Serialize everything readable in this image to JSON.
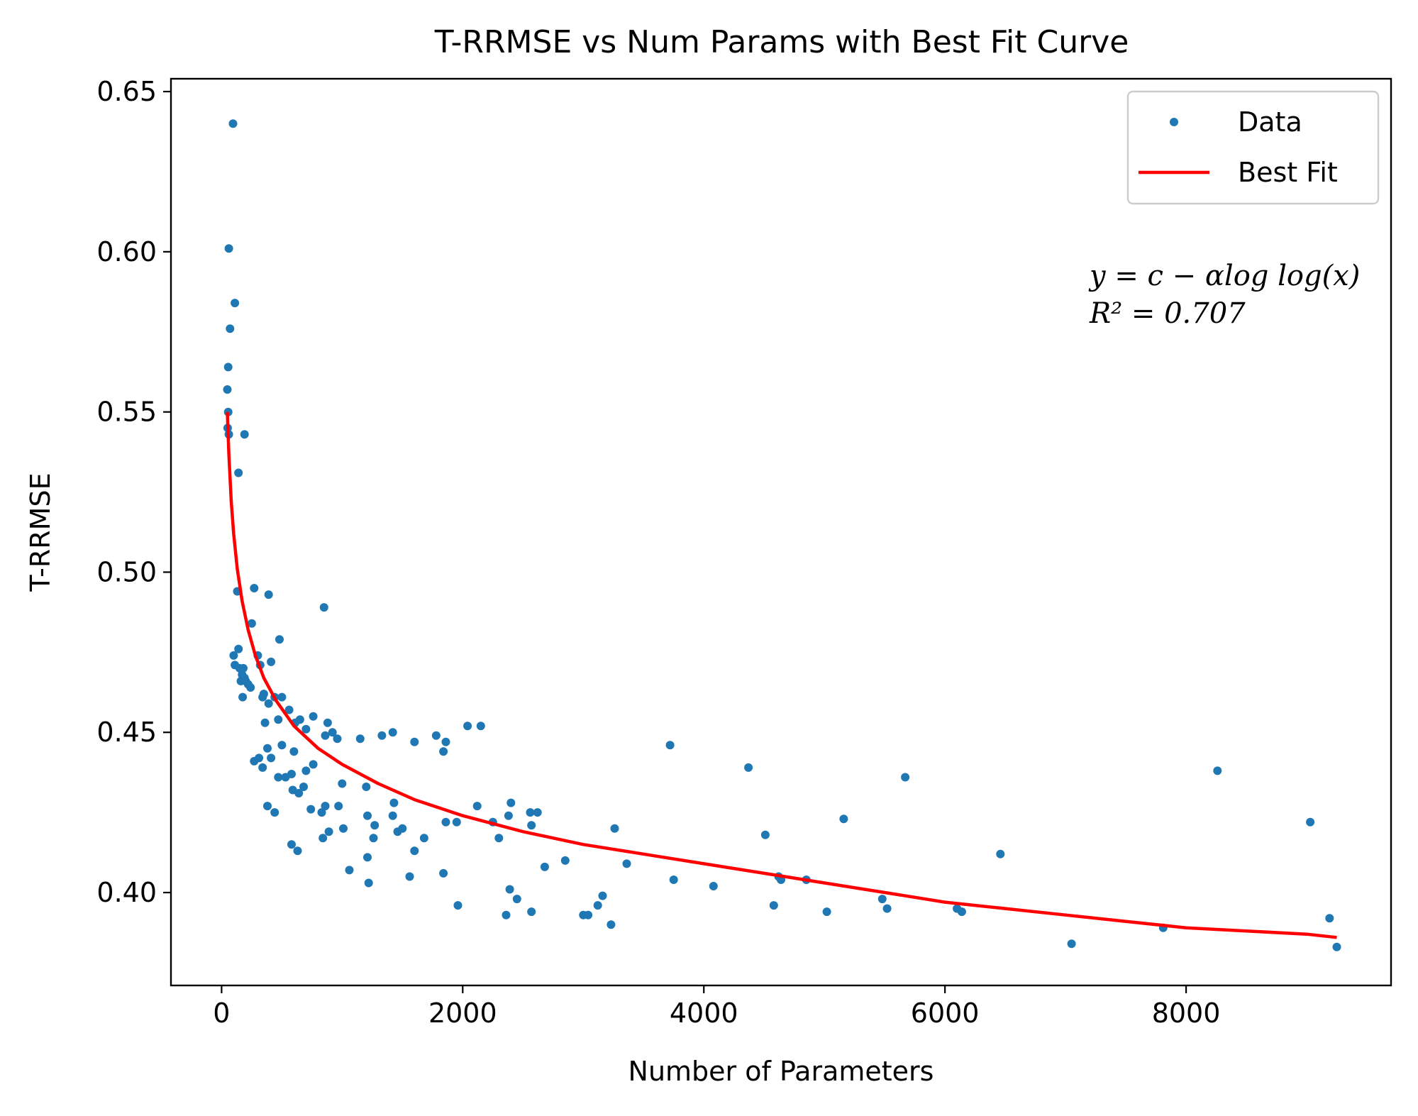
{
  "chart_data": {
    "type": "scatter",
    "title": "T-RRMSE vs Num Params with Best Fit Curve",
    "xlabel": "Number of Parameters",
    "ylabel": "T-RRMSE",
    "xlim": [
      -420,
      9700
    ],
    "ylim": [
      0.371,
      0.654
    ],
    "xticks": [
      0,
      2000,
      4000,
      6000,
      8000
    ],
    "xtick_labels": [
      "0",
      "2000",
      "4000",
      "6000",
      "8000"
    ],
    "yticks": [
      0.4,
      0.45,
      0.5,
      0.55,
      0.6,
      0.65
    ],
    "ytick_labels": [
      "0.40",
      "0.45",
      "0.50",
      "0.55",
      "0.60",
      "0.65"
    ],
    "grid": false,
    "legend": {
      "position": "top-right",
      "entries": [
        "Data",
        "Best Fit"
      ]
    },
    "annotation": {
      "line1": "y = c − αlog log(x)",
      "line2": "R² = 0.707"
    },
    "colors": {
      "data": "#1f77b4",
      "fit": "#ff0000",
      "axes": "#000000",
      "background": "#ffffff"
    },
    "series": [
      {
        "name": "Data",
        "kind": "scatter",
        "points": [
          [
            95,
            0.64
          ],
          [
            60,
            0.601
          ],
          [
            110,
            0.584
          ],
          [
            70,
            0.576
          ],
          [
            55,
            0.564
          ],
          [
            48,
            0.557
          ],
          [
            55,
            0.55
          ],
          [
            50,
            0.545
          ],
          [
            60,
            0.543
          ],
          [
            190,
            0.543
          ],
          [
            140,
            0.531
          ],
          [
            130,
            0.494
          ],
          [
            270,
            0.495
          ],
          [
            390,
            0.493
          ],
          [
            250,
            0.484
          ],
          [
            480,
            0.479
          ],
          [
            850,
            0.489
          ],
          [
            100,
            0.474
          ],
          [
            110,
            0.471
          ],
          [
            140,
            0.476
          ],
          [
            150,
            0.47
          ],
          [
            170,
            0.468
          ],
          [
            180,
            0.47
          ],
          [
            190,
            0.467
          ],
          [
            200,
            0.466
          ],
          [
            220,
            0.465
          ],
          [
            240,
            0.464
          ],
          [
            160,
            0.466
          ],
          [
            175,
            0.461
          ],
          [
            300,
            0.474
          ],
          [
            320,
            0.471
          ],
          [
            350,
            0.462
          ],
          [
            340,
            0.461
          ],
          [
            410,
            0.472
          ],
          [
            390,
            0.459
          ],
          [
            440,
            0.461
          ],
          [
            500,
            0.461
          ],
          [
            470,
            0.454
          ],
          [
            360,
            0.453
          ],
          [
            560,
            0.457
          ],
          [
            610,
            0.453
          ],
          [
            650,
            0.454
          ],
          [
            700,
            0.451
          ],
          [
            760,
            0.455
          ],
          [
            600,
            0.444
          ],
          [
            500,
            0.446
          ],
          [
            380,
            0.445
          ],
          [
            410,
            0.442
          ],
          [
            310,
            0.442
          ],
          [
            270,
            0.441
          ],
          [
            340,
            0.439
          ],
          [
            470,
            0.436
          ],
          [
            530,
            0.436
          ],
          [
            580,
            0.437
          ],
          [
            590,
            0.432
          ],
          [
            640,
            0.431
          ],
          [
            680,
            0.433
          ],
          [
            700,
            0.438
          ],
          [
            760,
            0.44
          ],
          [
            740,
            0.426
          ],
          [
            830,
            0.425
          ],
          [
            860,
            0.427
          ],
          [
            880,
            0.453
          ],
          [
            860,
            0.449
          ],
          [
            920,
            0.45
          ],
          [
            960,
            0.448
          ],
          [
            1000,
            0.434
          ],
          [
            970,
            0.427
          ],
          [
            380,
            0.427
          ],
          [
            440,
            0.425
          ],
          [
            580,
            0.415
          ],
          [
            630,
            0.413
          ],
          [
            840,
            0.417
          ],
          [
            890,
            0.419
          ],
          [
            1010,
            0.42
          ],
          [
            1060,
            0.407
          ],
          [
            1150,
            0.448
          ],
          [
            1200,
            0.433
          ],
          [
            1210,
            0.424
          ],
          [
            1270,
            0.421
          ],
          [
            1260,
            0.417
          ],
          [
            1210,
            0.411
          ],
          [
            1220,
            0.403
          ],
          [
            1330,
            0.449
          ],
          [
            1420,
            0.45
          ],
          [
            1430,
            0.428
          ],
          [
            1420,
            0.424
          ],
          [
            1460,
            0.419
          ],
          [
            1500,
            0.42
          ],
          [
            1600,
            0.447
          ],
          [
            1600,
            0.413
          ],
          [
            1680,
            0.417
          ],
          [
            1560,
            0.405
          ],
          [
            1780,
            0.449
          ],
          [
            1840,
            0.444
          ],
          [
            1860,
            0.447
          ],
          [
            1860,
            0.422
          ],
          [
            1950,
            0.422
          ],
          [
            1840,
            0.406
          ],
          [
            1960,
            0.396
          ],
          [
            2040,
            0.452
          ],
          [
            2150,
            0.452
          ],
          [
            2120,
            0.427
          ],
          [
            2250,
            0.422
          ],
          [
            2300,
            0.417
          ],
          [
            2380,
            0.424
          ],
          [
            2400,
            0.428
          ],
          [
            2360,
            0.393
          ],
          [
            2390,
            0.401
          ],
          [
            2450,
            0.398
          ],
          [
            2560,
            0.425
          ],
          [
            2570,
            0.421
          ],
          [
            2620,
            0.425
          ],
          [
            2570,
            0.394
          ],
          [
            2680,
            0.408
          ],
          [
            2850,
            0.41
          ],
          [
            3000,
            0.393
          ],
          [
            3040,
            0.393
          ],
          [
            3120,
            0.396
          ],
          [
            3160,
            0.399
          ],
          [
            3230,
            0.39
          ],
          [
            3260,
            0.42
          ],
          [
            3360,
            0.409
          ],
          [
            3720,
            0.446
          ],
          [
            3750,
            0.404
          ],
          [
            4080,
            0.402
          ],
          [
            4370,
            0.439
          ],
          [
            4510,
            0.418
          ],
          [
            4580,
            0.396
          ],
          [
            4620,
            0.405
          ],
          [
            4640,
            0.404
          ],
          [
            4850,
            0.404
          ],
          [
            5020,
            0.394
          ],
          [
            5160,
            0.423
          ],
          [
            5480,
            0.398
          ],
          [
            5520,
            0.395
          ],
          [
            5670,
            0.436
          ],
          [
            6100,
            0.395
          ],
          [
            6140,
            0.394
          ],
          [
            6460,
            0.412
          ],
          [
            7050,
            0.384
          ],
          [
            7810,
            0.389
          ],
          [
            8260,
            0.438
          ],
          [
            9030,
            0.422
          ],
          [
            9190,
            0.392
          ],
          [
            9250,
            0.383
          ]
        ]
      },
      {
        "name": "Best Fit",
        "kind": "line",
        "points": [
          [
            48,
            0.55
          ],
          [
            60,
            0.537
          ],
          [
            80,
            0.522
          ],
          [
            100,
            0.512
          ],
          [
            130,
            0.501
          ],
          [
            170,
            0.491
          ],
          [
            220,
            0.482
          ],
          [
            280,
            0.474
          ],
          [
            350,
            0.467
          ],
          [
            450,
            0.46
          ],
          [
            600,
            0.452
          ],
          [
            800,
            0.445
          ],
          [
            1000,
            0.44
          ],
          [
            1300,
            0.434
          ],
          [
            1600,
            0.429
          ],
          [
            2000,
            0.424
          ],
          [
            2500,
            0.419
          ],
          [
            3000,
            0.415
          ],
          [
            3500,
            0.412
          ],
          [
            4000,
            0.409
          ],
          [
            4500,
            0.406
          ],
          [
            5000,
            0.403
          ],
          [
            5500,
            0.4
          ],
          [
            6000,
            0.397
          ],
          [
            6500,
            0.395
          ],
          [
            7000,
            0.393
          ],
          [
            7500,
            0.391
          ],
          [
            8000,
            0.389
          ],
          [
            8500,
            0.388
          ],
          [
            9000,
            0.387
          ],
          [
            9250,
            0.386
          ]
        ]
      }
    ]
  }
}
